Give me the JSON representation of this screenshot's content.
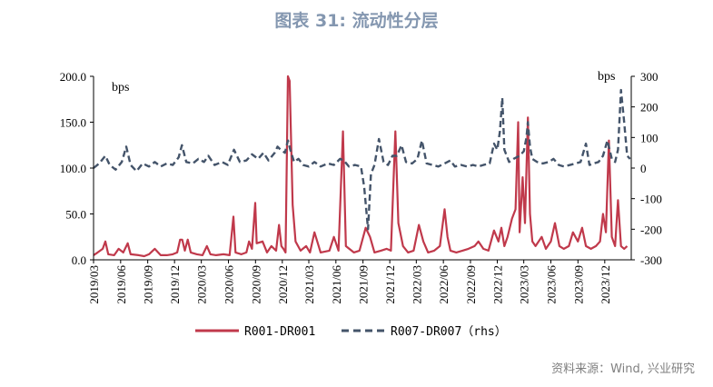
{
  "title": "图表 31: 流动性分层",
  "source": "资料来源：Wind, 兴业研究",
  "chart_data": {
    "type": "line",
    "left_axis": {
      "unit": "bps",
      "ylim": [
        0,
        200
      ],
      "ticks": [
        "0.0",
        "50.0",
        "100.0",
        "150.0",
        "200.0"
      ]
    },
    "right_axis": {
      "unit": "bps",
      "ylim": [
        -300,
        300
      ],
      "ticks": [
        "-300",
        "-200",
        "-100",
        "0",
        "100",
        "200",
        "300"
      ]
    },
    "x_ticks": [
      "2019/03",
      "2019/06",
      "2019/09",
      "2019/12",
      "2020/03",
      "2020/06",
      "2020/09",
      "2020/12",
      "2021/03",
      "2021/06",
      "2021/09",
      "2021/12",
      "2022/03",
      "2022/06",
      "2022/09",
      "2022/12",
      "2023/03",
      "2023/06",
      "2023/09",
      "2023/12"
    ],
    "grid": false,
    "legend_position": "bottom",
    "series": [
      {
        "name": "R001-DR001",
        "axis": "left",
        "color": "#c0394b",
        "style": "solid",
        "points": [
          [
            "2019-03-01",
            5
          ],
          [
            "2019-03-15",
            8
          ],
          [
            "2019-04-01",
            12
          ],
          [
            "2019-04-10",
            20
          ],
          [
            "2019-04-20",
            6
          ],
          [
            "2019-05-10",
            5
          ],
          [
            "2019-05-25",
            12
          ],
          [
            "2019-06-10",
            8
          ],
          [
            "2019-06-25",
            18
          ],
          [
            "2019-07-05",
            6
          ],
          [
            "2019-08-01",
            5
          ],
          [
            "2019-08-20",
            4
          ],
          [
            "2019-09-05",
            6
          ],
          [
            "2019-09-25",
            12
          ],
          [
            "2019-10-15",
            5
          ],
          [
            "2019-11-05",
            5
          ],
          [
            "2019-11-25",
            6
          ],
          [
            "2019-12-10",
            8
          ],
          [
            "2019-12-20",
            22
          ],
          [
            "2019-12-27",
            22
          ],
          [
            "2020-01-05",
            10
          ],
          [
            "2020-01-15",
            22
          ],
          [
            "2020-01-25",
            8
          ],
          [
            "2020-02-15",
            6
          ],
          [
            "2020-03-05",
            5
          ],
          [
            "2020-03-20",
            15
          ],
          [
            "2020-04-01",
            6
          ],
          [
            "2020-04-20",
            5
          ],
          [
            "2020-05-15",
            6
          ],
          [
            "2020-06-05",
            5
          ],
          [
            "2020-06-18",
            47
          ],
          [
            "2020-06-25",
            8
          ],
          [
            "2020-07-15",
            6
          ],
          [
            "2020-08-01",
            8
          ],
          [
            "2020-08-10",
            20
          ],
          [
            "2020-08-20",
            12
          ],
          [
            "2020-08-31",
            62
          ],
          [
            "2020-09-05",
            18
          ],
          [
            "2020-09-25",
            20
          ],
          [
            "2020-10-10",
            8
          ],
          [
            "2020-10-25",
            15
          ],
          [
            "2020-11-10",
            10
          ],
          [
            "2020-11-20",
            38
          ],
          [
            "2020-11-28",
            15
          ],
          [
            "2020-12-05",
            12
          ],
          [
            "2020-12-12",
            8
          ],
          [
            "2020-12-20",
            200
          ],
          [
            "2020-12-26",
            195
          ],
          [
            "2021-01-05",
            60
          ],
          [
            "2021-01-15",
            20
          ],
          [
            "2021-02-01",
            10
          ],
          [
            "2021-02-20",
            15
          ],
          [
            "2021-03-05",
            8
          ],
          [
            "2021-03-20",
            30
          ],
          [
            "2021-04-10",
            8
          ],
          [
            "2021-05-10",
            10
          ],
          [
            "2021-05-25",
            25
          ],
          [
            "2021-06-10",
            10
          ],
          [
            "2021-06-25",
            140
          ],
          [
            "2021-07-05",
            15
          ],
          [
            "2021-08-01",
            8
          ],
          [
            "2021-08-20",
            10
          ],
          [
            "2021-09-10",
            35
          ],
          [
            "2021-09-25",
            25
          ],
          [
            "2021-10-10",
            8
          ],
          [
            "2021-11-01",
            10
          ],
          [
            "2021-11-20",
            12
          ],
          [
            "2021-12-05",
            10
          ],
          [
            "2021-12-20",
            140
          ],
          [
            "2021-12-30",
            40
          ],
          [
            "2022-01-15",
            15
          ],
          [
            "2022-02-01",
            8
          ],
          [
            "2022-02-20",
            10
          ],
          [
            "2022-03-10",
            38
          ],
          [
            "2022-03-25",
            20
          ],
          [
            "2022-04-10",
            8
          ],
          [
            "2022-05-01",
            10
          ],
          [
            "2022-05-20",
            15
          ],
          [
            "2022-06-05",
            55
          ],
          [
            "2022-06-15",
            25
          ],
          [
            "2022-06-25",
            10
          ],
          [
            "2022-07-15",
            8
          ],
          [
            "2022-08-05",
            10
          ],
          [
            "2022-08-25",
            12
          ],
          [
            "2022-09-15",
            15
          ],
          [
            "2022-09-28",
            20
          ],
          [
            "2022-10-15",
            12
          ],
          [
            "2022-11-01",
            10
          ],
          [
            "2022-11-20",
            32
          ],
          [
            "2022-12-05",
            20
          ],
          [
            "2022-12-15",
            35
          ],
          [
            "2022-12-25",
            15
          ],
          [
            "2023-01-05",
            25
          ],
          [
            "2023-01-20",
            45
          ],
          [
            "2023-02-01",
            55
          ],
          [
            "2023-02-10",
            150
          ],
          [
            "2023-02-15",
            30
          ],
          [
            "2023-02-25",
            90
          ],
          [
            "2023-03-05",
            40
          ],
          [
            "2023-03-15",
            155
          ],
          [
            "2023-03-22",
            50
          ],
          [
            "2023-03-30",
            20
          ],
          [
            "2023-04-10",
            15
          ],
          [
            "2023-05-01",
            25
          ],
          [
            "2023-05-15",
            12
          ],
          [
            "2023-06-01",
            20
          ],
          [
            "2023-06-15",
            40
          ],
          [
            "2023-06-30",
            15
          ],
          [
            "2023-07-15",
            12
          ],
          [
            "2023-08-01",
            15
          ],
          [
            "2023-08-15",
            30
          ],
          [
            "2023-09-01",
            20
          ],
          [
            "2023-09-15",
            35
          ],
          [
            "2023-09-28",
            15
          ],
          [
            "2023-10-15",
            12
          ],
          [
            "2023-11-01",
            15
          ],
          [
            "2023-11-15",
            20
          ],
          [
            "2023-11-25",
            50
          ],
          [
            "2023-12-05",
            30
          ],
          [
            "2023-12-15",
            130
          ],
          [
            "2023-12-25",
            25
          ],
          [
            "2024-01-05",
            15
          ],
          [
            "2024-01-15",
            65
          ],
          [
            "2024-01-25",
            15
          ],
          [
            "2024-02-05",
            12
          ],
          [
            "2024-02-15",
            15
          ]
        ]
      },
      {
        "name": "R007-DR007（rhs）",
        "axis": "right",
        "color": "#44546a",
        "style": "dashed",
        "points": [
          [
            "2019-03-01",
            0
          ],
          [
            "2019-03-20",
            15
          ],
          [
            "2019-04-10",
            40
          ],
          [
            "2019-04-25",
            10
          ],
          [
            "2019-05-15",
            -5
          ],
          [
            "2019-06-05",
            20
          ],
          [
            "2019-06-20",
            70
          ],
          [
            "2019-07-05",
            10
          ],
          [
            "2019-07-25",
            -10
          ],
          [
            "2019-08-15",
            15
          ],
          [
            "2019-09-05",
            5
          ],
          [
            "2019-09-25",
            20
          ],
          [
            "2019-10-15",
            5
          ],
          [
            "2019-11-05",
            15
          ],
          [
            "2019-11-25",
            10
          ],
          [
            "2019-12-15",
            35
          ],
          [
            "2019-12-26",
            75
          ],
          [
            "2020-01-10",
            20
          ],
          [
            "2020-02-01",
            15
          ],
          [
            "2020-02-20",
            30
          ],
          [
            "2020-03-10",
            20
          ],
          [
            "2020-03-25",
            40
          ],
          [
            "2020-04-15",
            10
          ],
          [
            "2020-05-10",
            20
          ],
          [
            "2020-05-30",
            10
          ],
          [
            "2020-06-20",
            60
          ],
          [
            "2020-07-10",
            20
          ],
          [
            "2020-08-01",
            25
          ],
          [
            "2020-08-20",
            45
          ],
          [
            "2020-09-10",
            30
          ],
          [
            "2020-09-28",
            50
          ],
          [
            "2020-10-15",
            25
          ],
          [
            "2020-11-05",
            50
          ],
          [
            "2020-11-15",
            70
          ],
          [
            "2020-11-25",
            60
          ],
          [
            "2020-12-10",
            50
          ],
          [
            "2020-12-20",
            90
          ],
          [
            "2020-12-28",
            60
          ],
          [
            "2021-01-10",
            20
          ],
          [
            "2021-01-25",
            30
          ],
          [
            "2021-02-10",
            10
          ],
          [
            "2021-03-01",
            5
          ],
          [
            "2021-03-20",
            20
          ],
          [
            "2021-04-10",
            5
          ],
          [
            "2021-05-05",
            15
          ],
          [
            "2021-05-25",
            10
          ],
          [
            "2021-06-15",
            30
          ],
          [
            "2021-06-28",
            25
          ],
          [
            "2021-07-15",
            5
          ],
          [
            "2021-08-05",
            10
          ],
          [
            "2021-08-25",
            5
          ],
          [
            "2021-09-05",
            -60
          ],
          [
            "2021-09-18",
            -200
          ],
          [
            "2021-09-28",
            -20
          ],
          [
            "2021-10-10",
            10
          ],
          [
            "2021-10-25",
            95
          ],
          [
            "2021-11-10",
            20
          ],
          [
            "2021-11-25",
            10
          ],
          [
            "2021-12-10",
            40
          ],
          [
            "2021-12-25",
            40
          ],
          [
            "2022-01-10",
            75
          ],
          [
            "2022-01-25",
            20
          ],
          [
            "2022-02-15",
            15
          ],
          [
            "2022-03-05",
            30
          ],
          [
            "2022-03-20",
            90
          ],
          [
            "2022-04-05",
            15
          ],
          [
            "2022-04-25",
            10
          ],
          [
            "2022-05-15",
            5
          ],
          [
            "2022-06-05",
            15
          ],
          [
            "2022-06-25",
            25
          ],
          [
            "2022-07-10",
            5
          ],
          [
            "2022-08-01",
            10
          ],
          [
            "2022-08-20",
            5
          ],
          [
            "2022-09-10",
            10
          ],
          [
            "2022-09-28",
            5
          ],
          [
            "2022-10-15",
            10
          ],
          [
            "2022-11-05",
            15
          ],
          [
            "2022-11-20",
            80
          ],
          [
            "2022-12-01",
            60
          ],
          [
            "2022-12-10",
            120
          ],
          [
            "2022-12-18",
            230
          ],
          [
            "2022-12-25",
            60
          ],
          [
            "2023-01-10",
            20
          ],
          [
            "2023-01-25",
            30
          ],
          [
            "2023-02-15",
            40
          ],
          [
            "2023-03-01",
            55
          ],
          [
            "2023-03-10",
            100
          ],
          [
            "2023-03-15",
            150
          ],
          [
            "2023-03-22",
            70
          ],
          [
            "2023-03-30",
            30
          ],
          [
            "2023-04-15",
            20
          ],
          [
            "2023-05-05",
            15
          ],
          [
            "2023-05-25",
            20
          ],
          [
            "2023-06-10",
            30
          ],
          [
            "2023-06-28",
            10
          ],
          [
            "2023-07-15",
            5
          ],
          [
            "2023-08-05",
            10
          ],
          [
            "2023-08-25",
            15
          ],
          [
            "2023-09-10",
            20
          ],
          [
            "2023-09-28",
            80
          ],
          [
            "2023-10-10",
            10
          ],
          [
            "2023-10-25",
            15
          ],
          [
            "2023-11-10",
            20
          ],
          [
            "2023-11-25",
            40
          ],
          [
            "2023-12-10",
            90
          ],
          [
            "2023-12-25",
            30
          ],
          [
            "2024-01-05",
            20
          ],
          [
            "2024-01-15",
            60
          ],
          [
            "2024-01-25",
            255
          ],
          [
            "2024-02-05",
            150
          ],
          [
            "2024-02-15",
            40
          ],
          [
            "2024-02-25",
            30
          ]
        ]
      }
    ]
  }
}
